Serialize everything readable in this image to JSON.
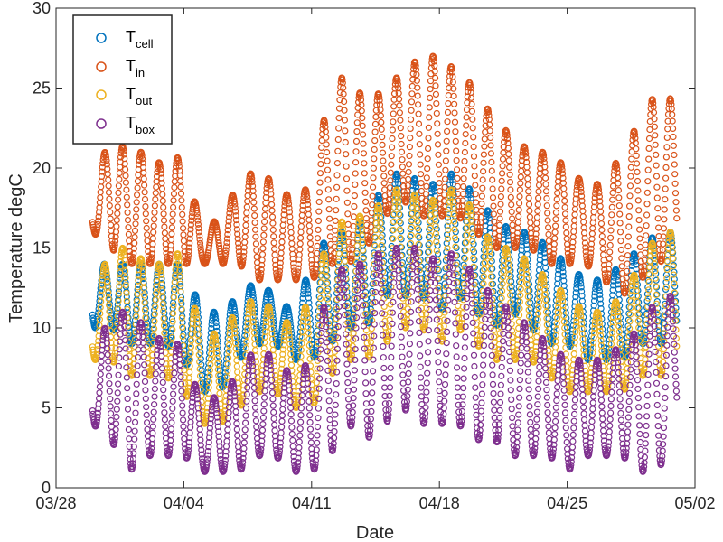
{
  "chart_data": {
    "type": "scatter",
    "title": "",
    "xlabel": "Date",
    "ylabel": "Temperature degC",
    "xlim": [
      "03/28",
      "05/02"
    ],
    "ylim": [
      0,
      30
    ],
    "x_ticks": [
      "03/28",
      "04/04",
      "04/11",
      "04/18",
      "04/25",
      "05/02"
    ],
    "y_ticks": [
      0,
      5,
      10,
      15,
      20,
      25,
      30
    ],
    "grid": false,
    "legend_position": "top-left",
    "marker": "open-circle",
    "series": [
      {
        "name": "T_cell",
        "legend_main": "T",
        "legend_sub": "cell",
        "color": "#0072BD",
        "x": [
          "03/30",
          "03/31",
          "04/01",
          "04/02",
          "04/03",
          "04/04",
          "04/05",
          "04/06",
          "04/07",
          "04/08",
          "04/09",
          "04/10",
          "04/11",
          "04/12",
          "04/13",
          "04/14",
          "04/15",
          "04/16",
          "04/17",
          "04/18",
          "04/19",
          "04/20",
          "04/21",
          "04/22",
          "04/23",
          "04/24",
          "04/25",
          "04/26",
          "04/27",
          "04/28",
          "04/29",
          "04/30",
          "05/01"
        ],
        "min": [
          10,
          10,
          9,
          9,
          9,
          8,
          6,
          6,
          8,
          9,
          9,
          8,
          8,
          9,
          10,
          10,
          12,
          12,
          12,
          11,
          12,
          11,
          10,
          11,
          10,
          9,
          9,
          8,
          8,
          8,
          9,
          9,
          9
        ],
        "max": [
          14,
          14,
          14,
          14,
          14,
          14,
          11,
          11,
          12,
          13,
          12,
          11,
          14,
          16,
          16,
          17,
          19,
          20,
          19,
          19,
          20,
          18,
          17,
          16,
          16,
          15,
          14,
          13,
          13,
          14,
          15,
          16,
          16
        ]
      },
      {
        "name": "T_in",
        "legend_main": "T",
        "legend_sub": "in",
        "color": "#D95319",
        "x": [
          "03/30",
          "03/31",
          "04/01",
          "04/02",
          "04/03",
          "04/04",
          "04/05",
          "04/06",
          "04/07",
          "04/08",
          "04/09",
          "04/10",
          "04/11",
          "04/12",
          "04/13",
          "04/14",
          "04/15",
          "04/16",
          "04/17",
          "04/18",
          "04/19",
          "04/20",
          "04/21",
          "04/22",
          "04/23",
          "04/24",
          "04/25",
          "04/26",
          "04/27",
          "04/28",
          "04/29",
          "04/30",
          "05/01"
        ],
        "min": [
          16,
          15,
          14,
          14,
          14,
          14,
          14,
          14,
          14,
          13,
          13,
          13,
          13,
          14,
          14,
          15,
          17,
          18,
          17,
          17,
          17,
          16,
          15,
          15,
          15,
          14,
          14,
          14,
          13,
          12,
          13,
          14,
          15
        ],
        "max": [
          19,
          22,
          21,
          21,
          20,
          21,
          16,
          17,
          19,
          20,
          19,
          18,
          19,
          25,
          26,
          24,
          25,
          26,
          27,
          27,
          26,
          25,
          23,
          22,
          21,
          21,
          20,
          19,
          19,
          21,
          23,
          25,
          24
        ]
      },
      {
        "name": "T_out",
        "legend_main": "T",
        "legend_sub": "out",
        "color": "#EDB120",
        "x": [
          "03/30",
          "03/31",
          "04/01",
          "04/02",
          "04/03",
          "04/04",
          "04/05",
          "04/06",
          "04/07",
          "04/08",
          "04/09",
          "04/10",
          "04/11",
          "04/12",
          "04/13",
          "04/14",
          "04/15",
          "04/16",
          "04/17",
          "04/18",
          "04/19",
          "04/20",
          "04/21",
          "04/22",
          "04/23",
          "04/24",
          "04/25",
          "04/26",
          "04/27",
          "04/28",
          "04/29",
          "04/30",
          "05/01"
        ],
        "min": [
          8,
          8,
          7,
          7,
          7,
          6,
          4,
          4,
          5,
          6,
          6,
          5,
          5,
          7,
          8,
          8,
          9,
          10,
          10,
          9,
          10,
          9,
          8,
          8,
          8,
          7,
          6,
          6,
          6,
          6,
          7,
          7,
          7
        ],
        "max": [
          12,
          15,
          15,
          14,
          14,
          15,
          9,
          10,
          11,
          12,
          11,
          10,
          12,
          16,
          17,
          17,
          18,
          19,
          18,
          18,
          19,
          17,
          15,
          15,
          14,
          13,
          12,
          11,
          11,
          12,
          14,
          16,
          16
        ]
      },
      {
        "name": "T_box",
        "legend_main": "T",
        "legend_sub": "box",
        "color": "#7E2F8E",
        "x": [
          "03/30",
          "03/31",
          "04/01",
          "04/02",
          "04/03",
          "04/04",
          "04/05",
          "04/06",
          "04/07",
          "04/08",
          "04/09",
          "04/10",
          "04/11",
          "04/12",
          "04/13",
          "04/14",
          "04/15",
          "04/16",
          "04/17",
          "04/18",
          "04/19",
          "04/20",
          "04/21",
          "04/22",
          "04/23",
          "04/24",
          "04/25",
          "04/26",
          "04/27",
          "04/28",
          "04/29",
          "04/30",
          "05/01"
        ],
        "min": [
          4,
          3,
          1,
          2,
          2,
          2,
          1,
          1,
          1,
          2,
          2,
          1,
          1,
          2,
          4,
          3,
          4,
          5,
          4,
          4,
          4,
          3,
          3,
          2,
          2,
          2,
          1,
          2,
          2,
          2,
          1,
          1,
          4
        ],
        "max": [
          8,
          11,
          11,
          10,
          9,
          9,
          5,
          6,
          7,
          9,
          8,
          7,
          8,
          13,
          14,
          14,
          15,
          15,
          15,
          14,
          15,
          13,
          12,
          11,
          10,
          9,
          8,
          8,
          8,
          9,
          10,
          12,
          12
        ]
      }
    ]
  }
}
